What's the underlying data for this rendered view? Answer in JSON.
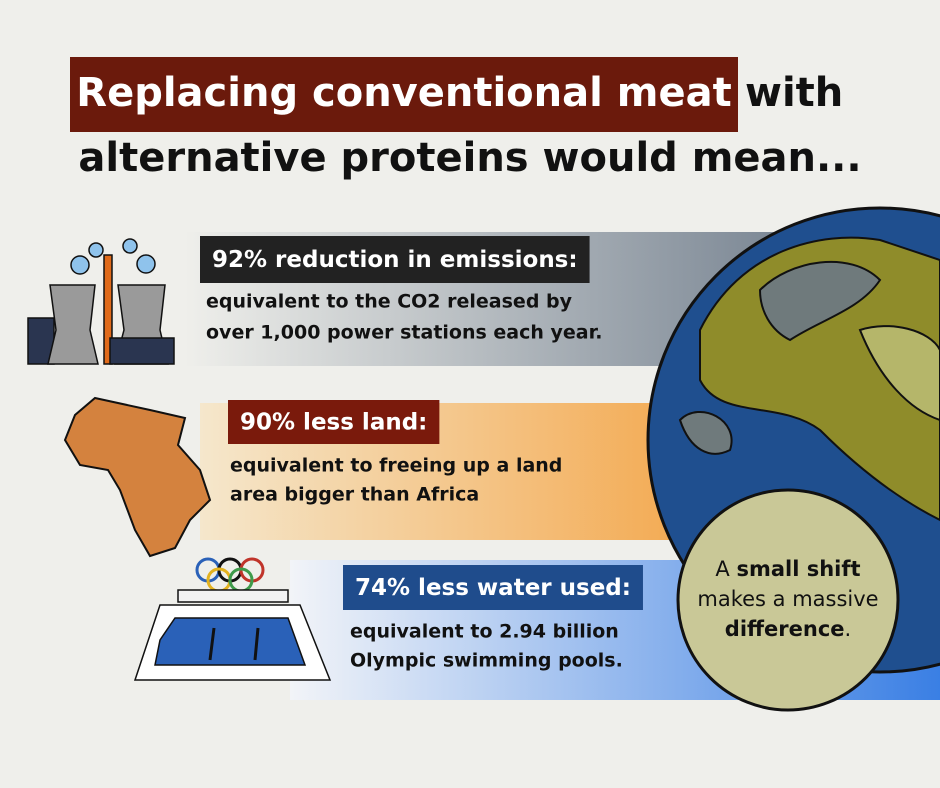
{
  "title": {
    "highlight": "Replacing conventional meat",
    "rest_line1": "with",
    "line2": "alternative proteins would mean..."
  },
  "rows": [
    {
      "heading": "92% reduction in emissions:",
      "body": [
        "equivalent to the CO2 released by",
        "over 1,000 power stations each year."
      ]
    },
    {
      "heading": "90% less land:",
      "body": [
        "equivalent to freeing up a land",
        "area bigger than Africa"
      ]
    },
    {
      "heading": "74% less water used:",
      "body": [
        "equivalent to 2.94 billion",
        "Olympic swimming pools."
      ]
    }
  ],
  "callout": {
    "lines": [
      [
        {
          "text": "A ",
          "bold": false
        },
        {
          "text": "small shift",
          "bold": true
        }
      ],
      [
        {
          "text": "makes a massive",
          "bold": false
        }
      ],
      [
        {
          "text": "difference",
          "bold": true
        },
        {
          "text": ".",
          "bold": false
        }
      ]
    ]
  }
}
